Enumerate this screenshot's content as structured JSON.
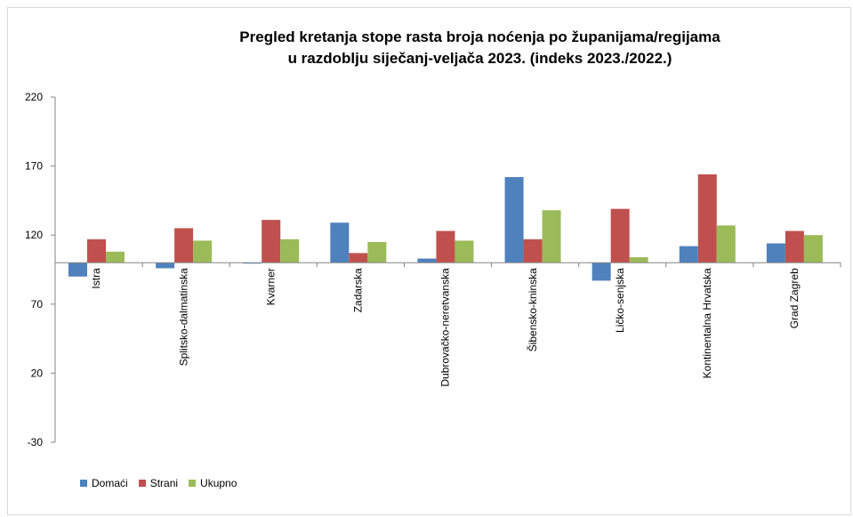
{
  "chart_data": {
    "type": "bar",
    "title_line1": "Pregled kretanja stope rasta broja noćenja po županijama/regijama",
    "title_line2": "u razdoblju siječanj-veljača 2023. (indeks 2023./2022.)",
    "categories": [
      "Istra",
      "Splitsko-dalmatinska",
      "Kvarner",
      "Zadarska",
      "Dubrovačko-neretvanska",
      "Šibensko-kninska",
      "Ličko-senjska",
      "Kontinentalna Hrvatska",
      "Grad Zagreb"
    ],
    "series": [
      {
        "name": "Domaći",
        "color": "#4f81bd",
        "values": [
          90,
          96,
          100,
          129,
          103,
          162,
          87,
          112,
          114
        ]
      },
      {
        "name": "Strani",
        "color": "#c0504d",
        "values": [
          117,
          125,
          131,
          107,
          123,
          117,
          139,
          164,
          123
        ]
      },
      {
        "name": "Ukupno",
        "color": "#9bbb59",
        "values": [
          108,
          116,
          117,
          115,
          116,
          138,
          104,
          127,
          120
        ]
      }
    ],
    "ylim": [
      -30,
      220
    ],
    "yticks": [
      220,
      170,
      120,
      70,
      20,
      -30
    ],
    "baseline": 100,
    "grid": false,
    "legend_position": "bottom-left"
  }
}
